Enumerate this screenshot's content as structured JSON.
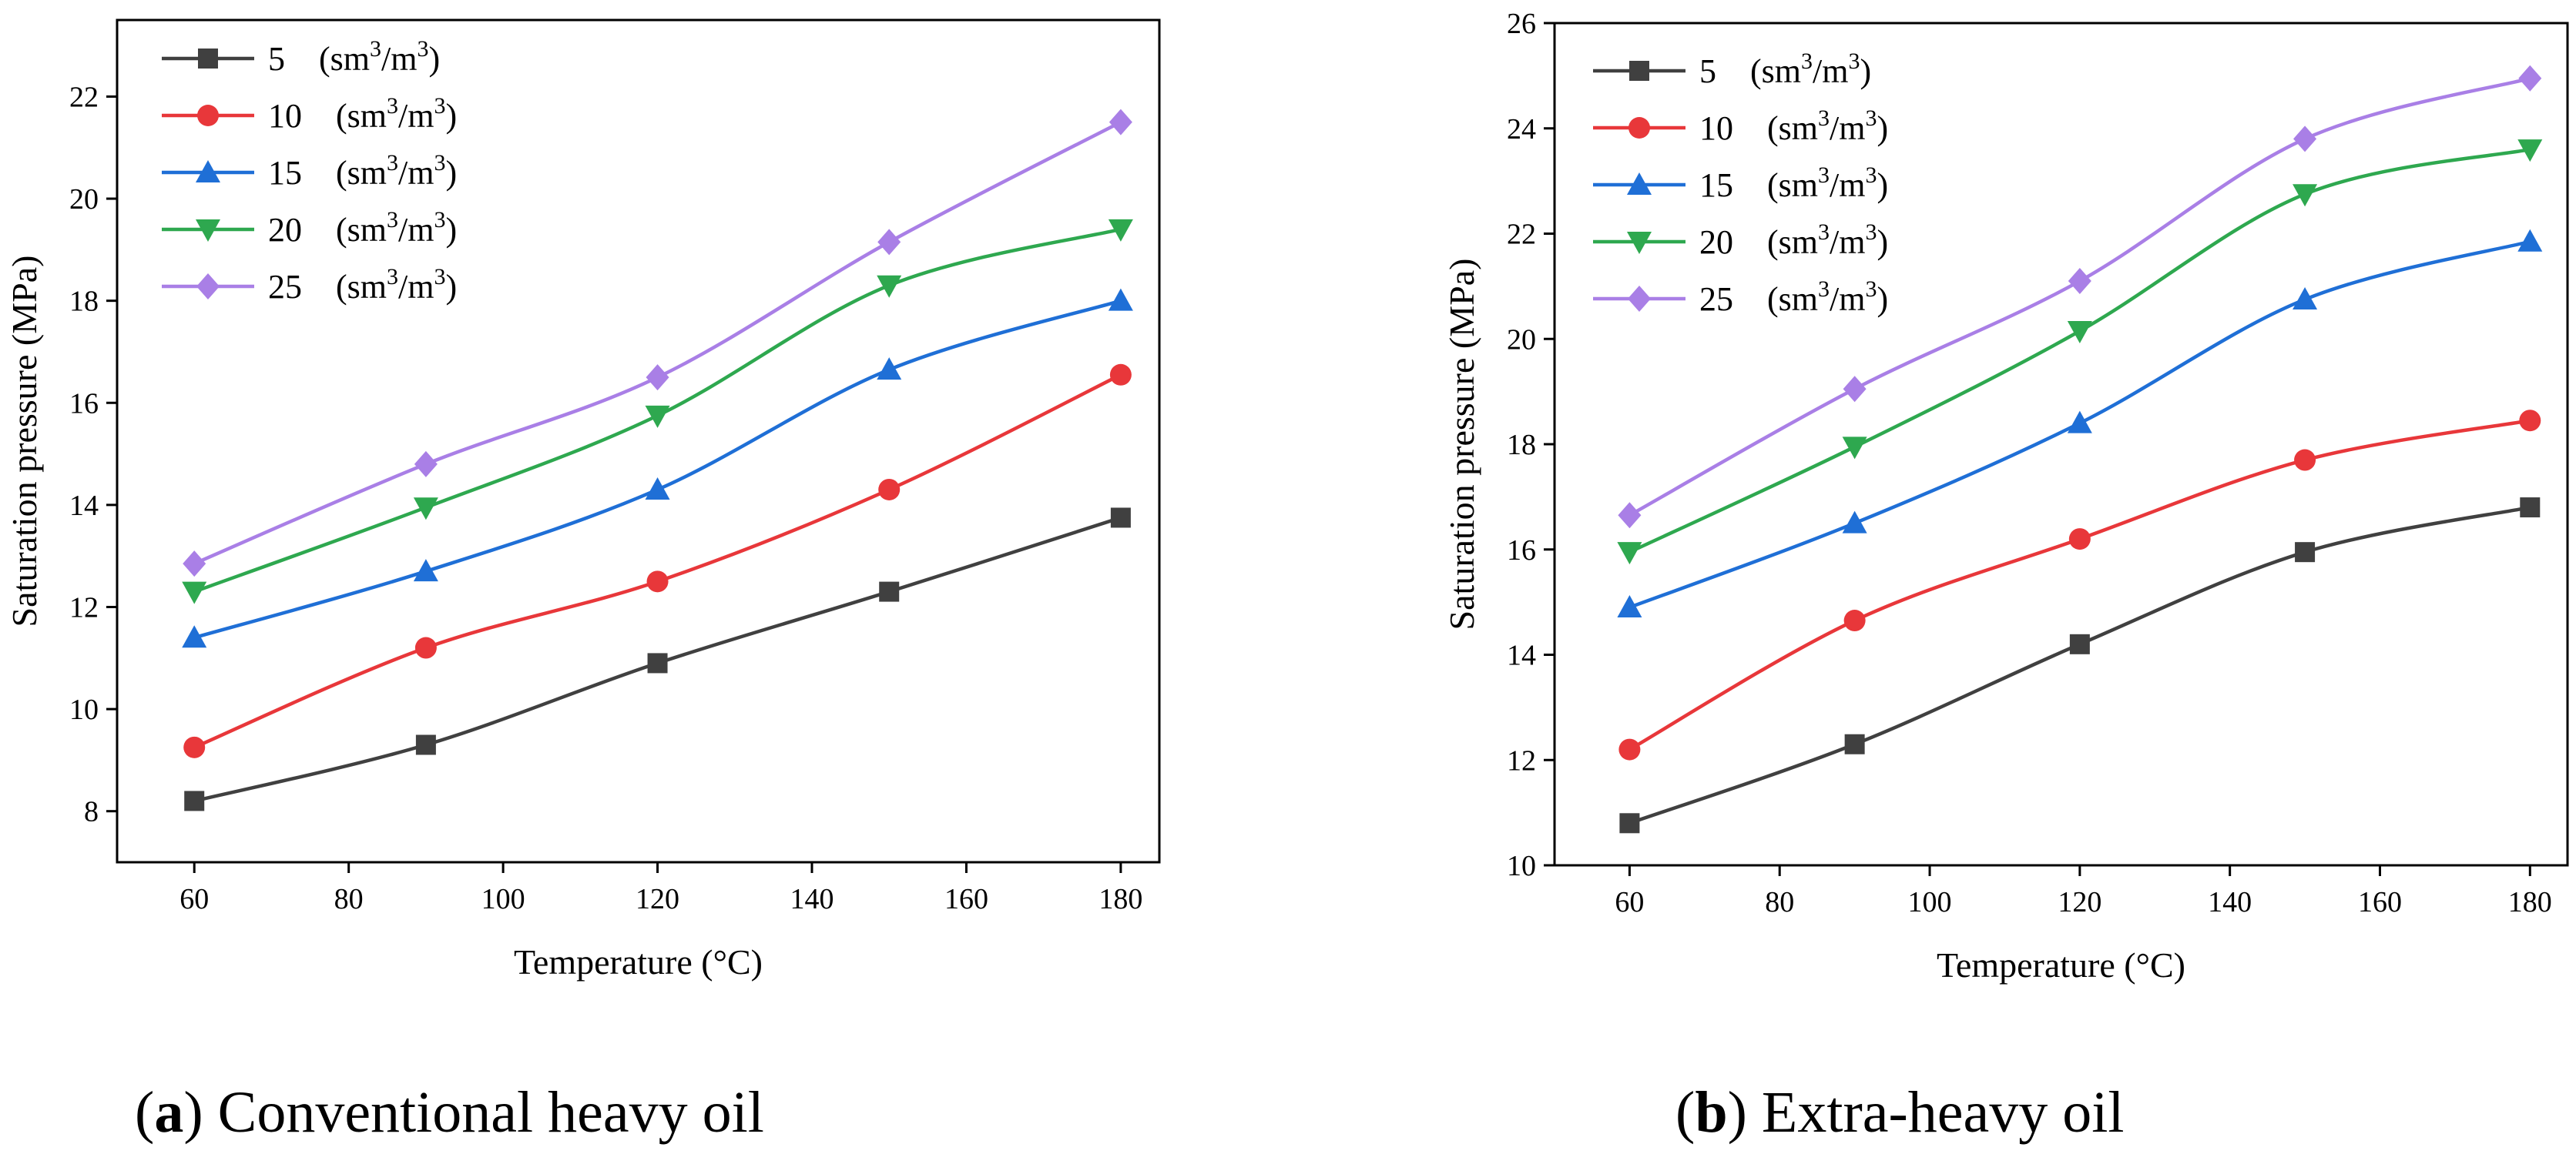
{
  "chart_data": [
    {
      "type": "line",
      "caption_label": "a",
      "caption_text": "Conventional heavy oil",
      "xlabel": "Temperature (°C)",
      "ylabel": "Saturation pressure (MPa)",
      "xlim": [
        50,
        185
      ],
      "ylim": [
        7,
        23.5
      ],
      "xticks": [
        60,
        80,
        100,
        120,
        140,
        160,
        180
      ],
      "yticks": [
        8,
        10,
        12,
        14,
        16,
        18,
        20,
        22
      ],
      "x": [
        60,
        90,
        120,
        150,
        180
      ],
      "legend_position": "top-left",
      "grid": false,
      "series": [
        {
          "name": "5 (sm³/m³)",
          "legend_num": "5",
          "color": "#404040",
          "marker": "square",
          "values": [
            8.2,
            9.3,
            10.9,
            12.3,
            13.75
          ]
        },
        {
          "name": "10 (sm³/m³)",
          "legend_num": "10",
          "color": "#e8373a",
          "marker": "circle",
          "values": [
            9.25,
            11.2,
            12.5,
            14.3,
            16.55
          ]
        },
        {
          "name": "15 (sm³/m³)",
          "legend_num": "15",
          "color": "#1f6fd6",
          "marker": "triangle-up",
          "values": [
            11.4,
            12.7,
            14.3,
            16.65,
            18.0
          ]
        },
        {
          "name": "20 (sm³/m³)",
          "legend_num": "20",
          "color": "#2ea84f",
          "marker": "triangle-down",
          "values": [
            12.3,
            13.95,
            15.75,
            18.3,
            19.4
          ]
        },
        {
          "name": "25 (sm³/m³)",
          "legend_num": "25",
          "color": "#a97fe6",
          "marker": "diamond",
          "values": [
            12.85,
            14.8,
            16.5,
            19.15,
            21.5
          ]
        }
      ]
    },
    {
      "type": "line",
      "caption_label": "b",
      "caption_text": "Extra-heavy oil",
      "xlabel": "Temperature (°C)",
      "ylabel": "Saturation pressure (MPa)",
      "xlim": [
        50,
        185
      ],
      "ylim": [
        10,
        26
      ],
      "xticks": [
        60,
        80,
        100,
        120,
        140,
        160,
        180
      ],
      "yticks": [
        10,
        12,
        14,
        16,
        18,
        20,
        22,
        24,
        26
      ],
      "x": [
        60,
        90,
        120,
        150,
        180
      ],
      "legend_position": "top-left",
      "grid": false,
      "series": [
        {
          "name": "5 (sm³/m³)",
          "legend_num": "5",
          "color": "#404040",
          "marker": "square",
          "values": [
            10.8,
            12.3,
            14.2,
            15.95,
            16.8
          ]
        },
        {
          "name": "10 (sm³/m³)",
          "legend_num": "10",
          "color": "#e8373a",
          "marker": "circle",
          "values": [
            12.2,
            14.65,
            16.2,
            17.7,
            18.45
          ]
        },
        {
          "name": "15 (sm³/m³)",
          "legend_num": "15",
          "color": "#1f6fd6",
          "marker": "triangle-up",
          "values": [
            14.9,
            16.5,
            18.4,
            20.75,
            21.85
          ]
        },
        {
          "name": "20 (sm³/m³)",
          "legend_num": "20",
          "color": "#2ea84f",
          "marker": "triangle-down",
          "values": [
            15.95,
            17.95,
            20.15,
            22.75,
            23.6
          ]
        },
        {
          "name": "25 (sm³/m³)",
          "legend_num": "25",
          "color": "#a97fe6",
          "marker": "diamond",
          "values": [
            16.65,
            19.05,
            21.1,
            23.8,
            24.95
          ]
        }
      ]
    }
  ]
}
